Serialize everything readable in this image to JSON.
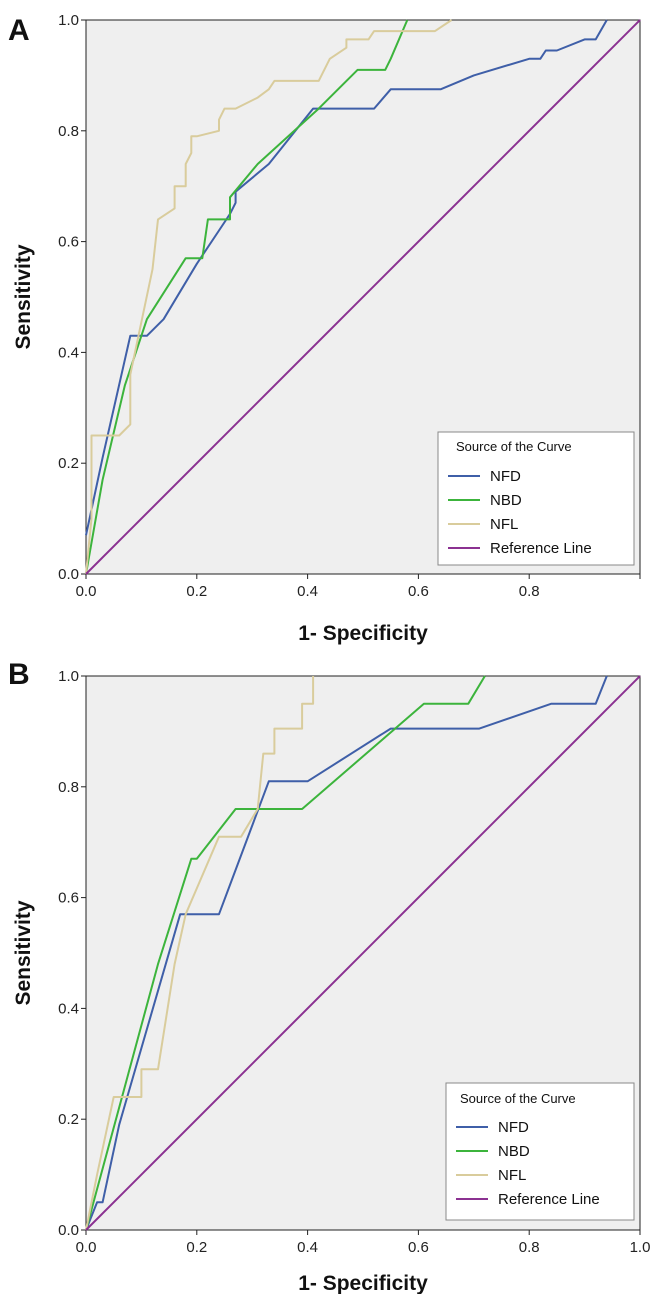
{
  "chart_data": [
    {
      "type": "line",
      "panel_label": "A",
      "xlabel": "1- Specificity",
      "ylabel": "Sensitivity",
      "xlim": [
        0,
        1
      ],
      "ylim": [
        0,
        1
      ],
      "x_ticks": [
        "0.0",
        "0.2",
        "0.4",
        "0.6",
        "0.8",
        ""
      ],
      "y_ticks": [
        "0.0",
        "0.2",
        "0.4",
        "0.6",
        "0.8",
        "1.0"
      ],
      "grid": false,
      "legend": {
        "title": "Source of the Curve",
        "position": "bottom-right",
        "entries": [
          "NFD",
          "NBD",
          "NFL",
          "Reference Line"
        ]
      },
      "series": [
        {
          "name": "NFD",
          "color": "#3f5fa8",
          "x": [
            0,
            0.03,
            0.08,
            0.11,
            0.14,
            0.2,
            0.24,
            0.26,
            0.27,
            0.27,
            0.33,
            0.41,
            0.52,
            0.55,
            0.64,
            0.7,
            0.8,
            0.82,
            0.83,
            0.85,
            0.9,
            0.92,
            0.94
          ],
          "y": [
            0.07,
            0.21,
            0.43,
            0.43,
            0.46,
            0.56,
            0.62,
            0.65,
            0.67,
            0.69,
            0.74,
            0.84,
            0.84,
            0.875,
            0.875,
            0.9,
            0.93,
            0.93,
            0.945,
            0.945,
            0.965,
            0.965,
            1.0
          ]
        },
        {
          "name": "NBD",
          "color": "#3cb43c",
          "x": [
            0,
            0.03,
            0.07,
            0.11,
            0.18,
            0.21,
            0.22,
            0.25,
            0.26,
            0.26,
            0.31,
            0.42,
            0.49,
            0.54,
            0.55,
            0.58
          ],
          "y": [
            0,
            0.17,
            0.34,
            0.46,
            0.57,
            0.57,
            0.64,
            0.64,
            0.64,
            0.68,
            0.74,
            0.84,
            0.91,
            0.91,
            0.93,
            1.0
          ]
        },
        {
          "name": "NFL",
          "color": "#d9cc9c",
          "x": [
            0,
            0.01,
            0.01,
            0.06,
            0.08,
            0.08,
            0.12,
            0.13,
            0.16,
            0.16,
            0.18,
            0.18,
            0.19,
            0.19,
            0.2,
            0.2,
            0.24,
            0.24,
            0.25,
            0.27,
            0.31,
            0.33,
            0.34,
            0.42,
            0.44,
            0.47,
            0.47,
            0.51,
            0.51,
            0.52,
            0.52,
            0.63,
            0.66
          ],
          "y": [
            0,
            0.1,
            0.25,
            0.25,
            0.27,
            0.36,
            0.55,
            0.64,
            0.66,
            0.7,
            0.7,
            0.74,
            0.76,
            0.79,
            0.79,
            0.79,
            0.8,
            0.82,
            0.84,
            0.84,
            0.86,
            0.875,
            0.89,
            0.89,
            0.93,
            0.95,
            0.965,
            0.965,
            0.965,
            0.98,
            0.98,
            0.98,
            1.0
          ]
        },
        {
          "name": "Reference Line",
          "color": "#8b3191",
          "x": [
            0,
            1
          ],
          "y": [
            0,
            1
          ]
        }
      ]
    },
    {
      "type": "line",
      "panel_label": "B",
      "xlabel": "1- Specificity",
      "ylabel": "Sensitivity",
      "xlim": [
        0,
        1
      ],
      "ylim": [
        0,
        1
      ],
      "x_ticks": [
        "0.0",
        "0.2",
        "0.4",
        "0.6",
        "0.8",
        "1.0"
      ],
      "y_ticks": [
        "0.0",
        "0.2",
        "0.4",
        "0.6",
        "0.8",
        "1.0"
      ],
      "grid": false,
      "legend": {
        "title": "Source of the Curve",
        "position": "bottom-right",
        "entries": [
          "NFD",
          "NBD",
          "NFL",
          "Reference Line"
        ]
      },
      "series": [
        {
          "name": "NFD",
          "color": "#3f5fa8",
          "x": [
            0,
            0.02,
            0.03,
            0.06,
            0.17,
            0.18,
            0.24,
            0.33,
            0.4,
            0.55,
            0.71,
            0.84,
            0.92,
            0.94
          ],
          "y": [
            0,
            0.05,
            0.05,
            0.19,
            0.57,
            0.57,
            0.57,
            0.81,
            0.81,
            0.905,
            0.905,
            0.95,
            0.95,
            1.0
          ]
        },
        {
          "name": "NBD",
          "color": "#3cb43c",
          "x": [
            0,
            0.13,
            0.19,
            0.2,
            0.27,
            0.39,
            0.61,
            0.69,
            0.72
          ],
          "y": [
            0,
            0.48,
            0.67,
            0.67,
            0.76,
            0.76,
            0.95,
            0.95,
            1.0
          ]
        },
        {
          "name": "NFL",
          "color": "#d9cc9c",
          "x": [
            0,
            0.02,
            0.02,
            0.05,
            0.06,
            0.1,
            0.1,
            0.13,
            0.16,
            0.18,
            0.24,
            0.28,
            0.31,
            0.32,
            0.33,
            0.34,
            0.34,
            0.36,
            0.39,
            0.39,
            0.41,
            0.41
          ],
          "y": [
            0,
            0.1,
            0.1,
            0.24,
            0.24,
            0.24,
            0.29,
            0.29,
            0.48,
            0.57,
            0.71,
            0.71,
            0.76,
            0.86,
            0.86,
            0.86,
            0.905,
            0.905,
            0.905,
            0.95,
            0.95,
            1.0
          ]
        },
        {
          "name": "Reference Line",
          "color": "#8b3191",
          "x": [
            0,
            1
          ],
          "y": [
            0,
            1
          ]
        }
      ]
    }
  ]
}
